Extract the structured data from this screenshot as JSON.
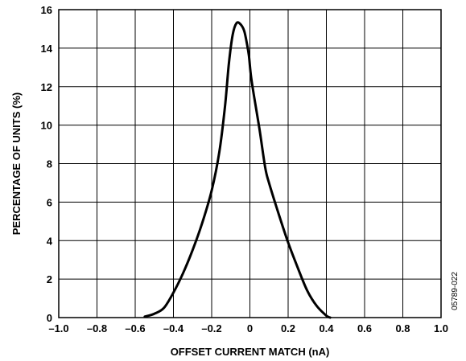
{
  "chart_data": {
    "type": "line",
    "title": "",
    "xlabel": "OFFSET CURRENT MATCH (nA)",
    "ylabel": "PERCENTAGE OF UNITS (%)",
    "xlim": [
      -1.0,
      1.0
    ],
    "ylim": [
      0,
      16
    ],
    "x_ticks": [
      -1.0,
      -0.8,
      -0.6,
      -0.4,
      -0.2,
      0,
      0.2,
      0.4,
      0.6,
      0.8,
      1.0
    ],
    "x_tick_labels": [
      "–1.0",
      "–0.8",
      "–0.6",
      "–0.4",
      "–0.2",
      "0",
      "0.2",
      "0.4",
      "0.6",
      "0.8",
      "1.0"
    ],
    "y_ticks": [
      0,
      2,
      4,
      6,
      8,
      10,
      12,
      14,
      16
    ],
    "y_tick_labels": [
      "0",
      "2",
      "4",
      "6",
      "8",
      "10",
      "12",
      "14",
      "16"
    ],
    "grid": true,
    "legend": "none",
    "line_color": "#000000",
    "series": [
      {
        "x": [
          -0.55,
          -0.5,
          -0.45,
          -0.4,
          -0.35,
          -0.3,
          -0.25,
          -0.2,
          -0.16,
          -0.13,
          -0.11,
          -0.09,
          -0.07,
          -0.05,
          -0.03,
          -0.015,
          -0.005,
          0.005,
          0.02,
          0.05,
          0.08,
          0.1,
          0.15,
          0.2,
          0.25,
          0.3,
          0.35,
          0.4,
          0.42
        ],
        "y": [
          0.05,
          0.2,
          0.5,
          1.3,
          2.3,
          3.5,
          4.9,
          6.6,
          8.6,
          11.0,
          13.2,
          14.7,
          15.3,
          15.25,
          14.9,
          14.2,
          13.6,
          12.6,
          11.6,
          9.8,
          7.8,
          7.0,
          5.4,
          3.9,
          2.6,
          1.4,
          0.6,
          0.1,
          0.0
        ]
      }
    ],
    "figure_id": "05789-022"
  }
}
